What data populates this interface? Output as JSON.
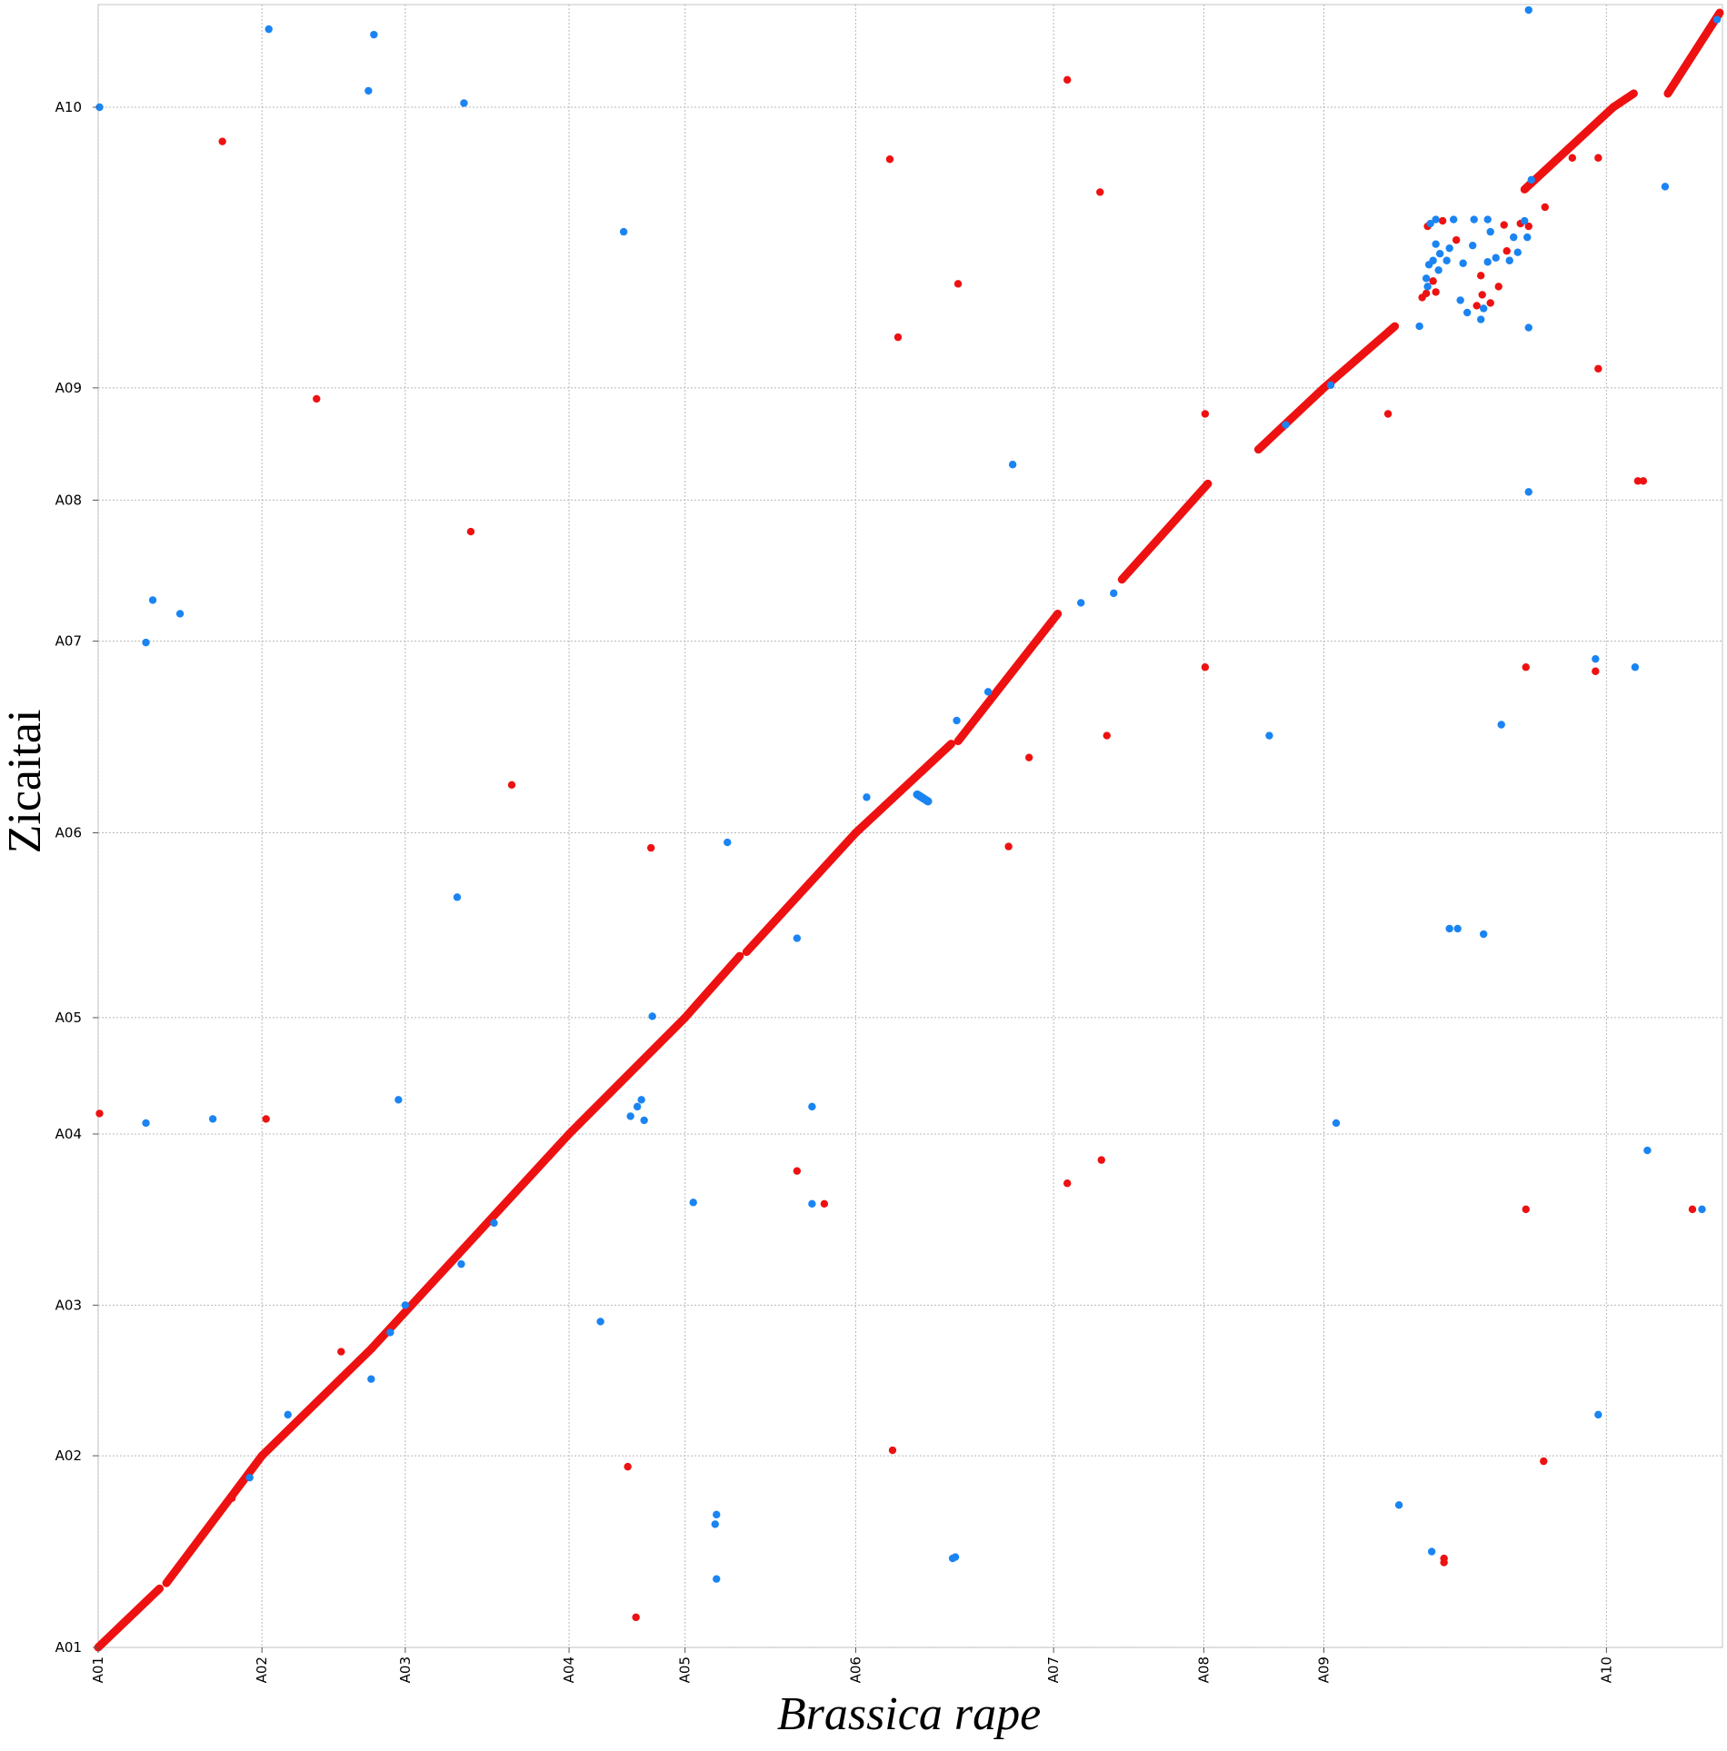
{
  "chart_data": {
    "type": "scatter",
    "xlabel": "Brassica rape",
    "ylabel": "Zicaitai",
    "x_ticks": [
      {
        "label": "A01",
        "value": 0
      },
      {
        "label": "A02",
        "value": 12
      },
      {
        "label": "A03",
        "value": 22.5
      },
      {
        "label": "A04",
        "value": 34.5
      },
      {
        "label": "A05",
        "value": 43
      },
      {
        "label": "A06",
        "value": 55.5
      },
      {
        "label": "A07",
        "value": 70
      },
      {
        "label": "A08",
        "value": 81
      },
      {
        "label": "A09",
        "value": 89.8
      },
      {
        "label": "A10",
        "value": 110.5
      }
    ],
    "y_ticks": [
      {
        "label": "A01",
        "value": 0
      },
      {
        "label": "A02",
        "value": 14
      },
      {
        "label": "A03",
        "value": 25
      },
      {
        "label": "A04",
        "value": 37.5
      },
      {
        "label": "A05",
        "value": 46
      },
      {
        "label": "A06",
        "value": 59.5
      },
      {
        "label": "A07",
        "value": 73.5
      },
      {
        "label": "A08",
        "value": 83.8
      },
      {
        "label": "A09",
        "value": 92
      },
      {
        "label": "A10",
        "value": 112.5
      }
    ],
    "xlim": [
      0,
      119
    ],
    "ylim": [
      0,
      120
    ],
    "grid": true,
    "colors": {
      "red": "#ee1111",
      "blue": "#1a84f2"
    },
    "red_segments": [
      [
        [
          0,
          0
        ],
        [
          4.5,
          4.3
        ]
      ],
      [
        [
          5.0,
          4.7
        ],
        [
          12.0,
          14.0
        ]
      ],
      [
        [
          12.0,
          14.0
        ],
        [
          20.0,
          21.8
        ]
      ],
      [
        [
          20.0,
          21.8
        ],
        [
          34.5,
          37.5
        ]
      ],
      [
        [
          34.5,
          37.5
        ],
        [
          43.0,
          46.0
        ]
      ],
      [
        [
          43.0,
          46.0
        ],
        [
          47.0,
          50.5
        ]
      ],
      [
        [
          47.5,
          50.8
        ],
        [
          55.5,
          59.5
        ]
      ],
      [
        [
          55.5,
          59.5
        ],
        [
          62.5,
          66.0
        ]
      ],
      [
        [
          63.0,
          66.2
        ],
        [
          70.3,
          75.5
        ]
      ],
      [
        [
          75.0,
          78.0
        ],
        [
          81.3,
          85.0
        ]
      ],
      [
        [
          85.0,
          87.5
        ],
        [
          89.8,
          92.0
        ]
      ],
      [
        [
          89.8,
          92.0
        ],
        [
          95.0,
          96.5
        ]
      ],
      [
        [
          104.5,
          106.5
        ],
        [
          111.0,
          112.5
        ]
      ],
      [
        [
          111.0,
          112.5
        ],
        [
          112.5,
          113.5
        ]
      ],
      [
        [
          115.0,
          113.5
        ],
        [
          118.8,
          119.4
        ]
      ]
    ],
    "blue_segments": [
      [
        [
          60.0,
          62.3
        ],
        [
          60.8,
          61.8
        ]
      ]
    ],
    "red_points": [
      [
        0.1,
        39.0
      ],
      [
        9.1,
        110.0
      ],
      [
        9.8,
        10.9
      ],
      [
        12.3,
        38.6
      ],
      [
        16.0,
        91.2
      ],
      [
        17.8,
        21.6
      ],
      [
        27.3,
        81.5
      ],
      [
        30.3,
        63.0
      ],
      [
        38.8,
        13.2
      ],
      [
        39.4,
        2.2
      ],
      [
        40.5,
        58.4
      ],
      [
        51.2,
        34.8
      ],
      [
        53.2,
        32.4
      ],
      [
        58.0,
        108.7
      ],
      [
        58.2,
        14.4
      ],
      [
        58.6,
        95.7
      ],
      [
        63.0,
        99.6
      ],
      [
        66.7,
        58.5
      ],
      [
        68.2,
        65.0
      ],
      [
        71.0,
        114.5
      ],
      [
        71.0,
        33.9
      ],
      [
        73.4,
        106.3
      ],
      [
        73.5,
        35.6
      ],
      [
        73.9,
        66.6
      ],
      [
        81.1,
        90.1
      ],
      [
        81.1,
        71.6
      ],
      [
        94.5,
        90.1
      ],
      [
        98.6,
        6.5
      ],
      [
        98.6,
        6.2
      ],
      [
        104.6,
        32.0
      ],
      [
        104.6,
        71.6
      ],
      [
        105.9,
        13.6
      ],
      [
        109.7,
        71.3
      ],
      [
        109.9,
        93.4
      ],
      [
        109.9,
        108.8
      ],
      [
        112.8,
        85.2
      ],
      [
        113.2,
        85.2
      ],
      [
        116.8,
        32.0
      ],
      [
        97.0,
        98.6
      ],
      [
        97.3,
        98.9
      ],
      [
        98.0,
        99.0
      ],
      [
        99.5,
        102.8
      ],
      [
        101.0,
        98.0
      ],
      [
        101.4,
        98.8
      ],
      [
        102.0,
        98.2
      ],
      [
        102.6,
        99.4
      ],
      [
        103.0,
        103.9
      ],
      [
        103.2,
        102.0
      ],
      [
        104.2,
        104.0
      ],
      [
        104.8,
        103.8
      ],
      [
        106.0,
        105.2
      ],
      [
        108.0,
        108.8
      ],
      [
        98.5,
        104.2
      ],
      [
        97.4,
        103.8
      ],
      [
        97.8,
        99.8
      ],
      [
        101.3,
        100.2
      ]
    ],
    "blue_points": [
      [
        0.1,
        112.5
      ],
      [
        3.5,
        38.3
      ],
      [
        3.5,
        73.4
      ],
      [
        4.0,
        76.5
      ],
      [
        6.0,
        75.5
      ],
      [
        8.4,
        38.6
      ],
      [
        12.5,
        118.2
      ],
      [
        11.1,
        12.4
      ],
      [
        13.9,
        17.0
      ],
      [
        20.0,
        19.6
      ],
      [
        19.8,
        113.7
      ],
      [
        20.2,
        117.8
      ],
      [
        22.5,
        25.0
      ],
      [
        21.4,
        23.0
      ],
      [
        22.0,
        40.0
      ],
      [
        26.3,
        54.8
      ],
      [
        26.8,
        112.8
      ],
      [
        26.6,
        28.0
      ],
      [
        29.0,
        31.0
      ],
      [
        36.8,
        23.8
      ],
      [
        38.5,
        103.4
      ],
      [
        39.0,
        38.8
      ],
      [
        39.5,
        39.5
      ],
      [
        39.8,
        40.0
      ],
      [
        40.0,
        38.5
      ],
      [
        40.6,
        46.1
      ],
      [
        43.6,
        32.5
      ],
      [
        45.3,
        5.0
      ],
      [
        45.3,
        9.7
      ],
      [
        45.2,
        9.0
      ],
      [
        46.1,
        58.8
      ],
      [
        51.2,
        51.8
      ],
      [
        52.3,
        39.5
      ],
      [
        52.3,
        32.4
      ],
      [
        56.3,
        62.1
      ],
      [
        62.6,
        6.5
      ],
      [
        62.8,
        6.6
      ],
      [
        62.9,
        67.7
      ],
      [
        65.2,
        69.8
      ],
      [
        67.0,
        86.4
      ],
      [
        72.0,
        76.3
      ],
      [
        74.4,
        77.0
      ],
      [
        85.8,
        66.6
      ],
      [
        87.0,
        89.3
      ],
      [
        90.3,
        92.2
      ],
      [
        90.7,
        38.3
      ],
      [
        95.3,
        10.4
      ],
      [
        97.7,
        7.0
      ],
      [
        99.0,
        52.5
      ],
      [
        99.6,
        52.5
      ],
      [
        101.5,
        52.1
      ],
      [
        102.8,
        67.4
      ],
      [
        96.8,
        96.5
      ],
      [
        97.5,
        101.0
      ],
      [
        97.8,
        101.3
      ],
      [
        104.8,
        84.4
      ],
      [
        104.8,
        96.4
      ],
      [
        104.8,
        119.6
      ],
      [
        105.0,
        107.2
      ],
      [
        109.7,
        72.2
      ],
      [
        109.9,
        17.0
      ],
      [
        112.6,
        71.6
      ],
      [
        113.5,
        36.3
      ],
      [
        114.8,
        106.7
      ],
      [
        118.6,
        118.9
      ],
      [
        117.5,
        32.0
      ],
      [
        98.0,
        102.5
      ],
      [
        98.3,
        101.8
      ],
      [
        98.8,
        101.3
      ],
      [
        99.0,
        102.2
      ],
      [
        100.0,
        101.1
      ],
      [
        100.7,
        102.4
      ],
      [
        101.8,
        101.2
      ],
      [
        102.4,
        101.5
      ],
      [
        103.4,
        101.3
      ],
      [
        104.0,
        101.9
      ],
      [
        103.7,
        103.0
      ],
      [
        97.6,
        104.0
      ],
      [
        98.0,
        104.3
      ],
      [
        99.3,
        104.3
      ],
      [
        100.8,
        104.3
      ],
      [
        101.8,
        104.3
      ],
      [
        102.0,
        103.4
      ],
      [
        104.5,
        104.2
      ],
      [
        104.7,
        103.0
      ],
      [
        100.3,
        97.5
      ],
      [
        99.8,
        98.4
      ],
      [
        101.3,
        97.0
      ],
      [
        101.5,
        97.8
      ],
      [
        97.3,
        100.0
      ],
      [
        97.4,
        99.4
      ],
      [
        98.2,
        100.6
      ]
    ]
  }
}
